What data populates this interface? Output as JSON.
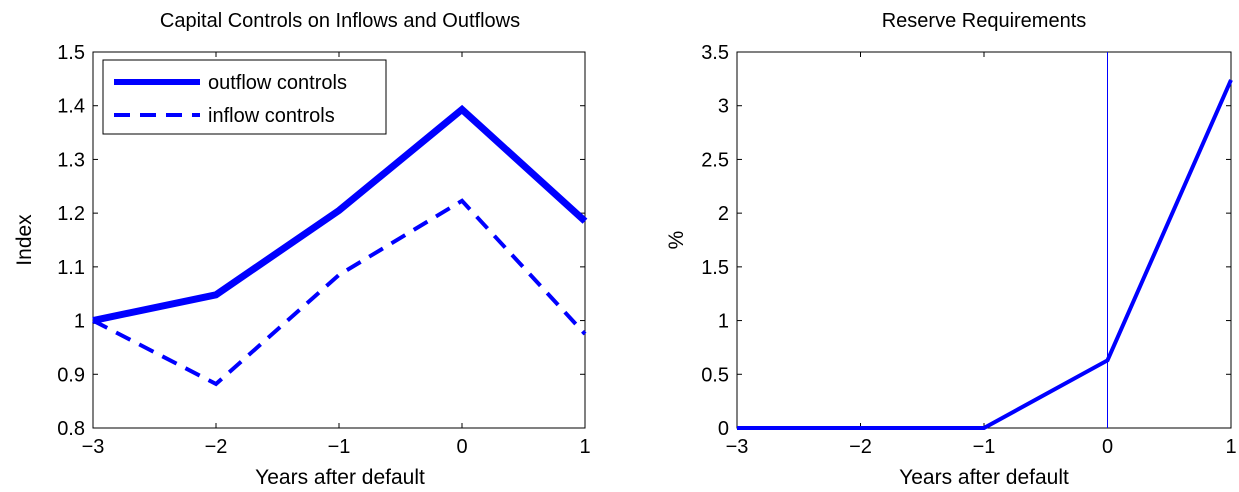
{
  "chart_data": [
    {
      "type": "line",
      "title": "Capital Controls on Inflows and Outflows",
      "xlabel": "Years after default",
      "ylabel": "Index",
      "xlim": [
        -3,
        1
      ],
      "ylim": [
        0.8,
        1.5
      ],
      "x": [
        -3,
        -2,
        -1,
        0,
        1
      ],
      "xticks": [
        -3,
        -2,
        -1,
        0,
        1
      ],
      "xtick_labels": [
        "−3",
        "−2",
        "−1",
        "0",
        "1"
      ],
      "yticks": [
        0.8,
        0.9,
        1,
        1.1,
        1.2,
        1.3,
        1.4,
        1.5
      ],
      "ytick_labels": [
        "0.8",
        "0.9",
        "1",
        "1.1",
        "1.2",
        "1.3",
        "1.4",
        "1.5"
      ],
      "grid": false,
      "legend_position": "top-left",
      "series": [
        {
          "name": "outflow controls",
          "values": [
            1.0,
            1.048,
            1.205,
            1.393,
            1.185
          ],
          "color": "#0000ff",
          "style": "solid"
        },
        {
          "name": "inflow controls",
          "values": [
            1.0,
            0.882,
            1.085,
            1.223,
            0.975
          ],
          "color": "#0000ff",
          "style": "dashed"
        }
      ]
    },
    {
      "type": "line",
      "title": "Reserve Requirements",
      "xlabel": "Years after default",
      "ylabel": "%",
      "xlim": [
        -3,
        1
      ],
      "ylim": [
        0,
        3.5
      ],
      "x": [
        -3,
        -2,
        -1,
        0,
        1
      ],
      "xticks": [
        -3,
        -2,
        -1,
        0,
        1
      ],
      "xtick_labels": [
        "−3",
        "−2",
        "−1",
        "0",
        "1"
      ],
      "yticks": [
        0,
        0.5,
        1,
        1.5,
        2,
        2.5,
        3,
        3.5
      ],
      "ytick_labels": [
        "0",
        "0.5",
        "1",
        "1.5",
        "2",
        "2.5",
        "3",
        "3.5"
      ],
      "grid": false,
      "vline_x": 0,
      "series": [
        {
          "values": [
            0,
            0,
            0,
            0.63,
            3.24
          ],
          "color": "#0000ff",
          "style": "solid"
        }
      ]
    }
  ]
}
